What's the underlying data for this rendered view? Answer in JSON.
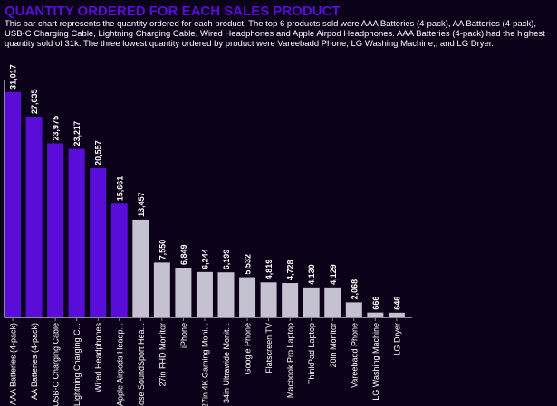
{
  "header": {
    "title": "QUANTITY ORDERED FOR EACH SALES PRODUCT",
    "description": "This bar chart represents the quantity ordered for each product. The top 6 products sold were AAA Batteries (4-pack), AA Batteries (4-pack), USB-C Charging Cable, Lightning Charging Cable, Wired Headphones and Apple Airpod Headphones. AAA Batteries (4-pack) had the highest quantity sold of 31k. The three lowest quantity ordered by product were Vareebadd Phone, LG Washing Machine,, and LG Dryer."
  },
  "colors": {
    "background": "#0b0219",
    "highlight": "#5a0cd8",
    "normal": "#c4c1d1",
    "title": "#5a0cd8"
  },
  "chart_data": {
    "type": "bar",
    "title": "QUANTITY ORDERED FOR EACH SALES PRODUCT",
    "xlabel": "",
    "ylabel": "",
    "ylim": [
      0,
      32000
    ],
    "grid": false,
    "highlight_count": 6,
    "categories": [
      "AAA Batteries (4-pack)",
      "AA Batteries (4-pack)",
      "USB-C Charging Cable",
      "Lightning Charging C...",
      "Wired Headphones",
      "Apple Airpods Headp...",
      "Bose SoundSport Hea...",
      "27in FHD Monitor",
      "iPhone",
      "27in 4K Gaming Moni...",
      "34in Ultrawide Monit...",
      "Google Phone",
      "Flatscreen TV",
      "Macbook Pro Laptop",
      "ThinkPad Laptop",
      "20in Monitor",
      "Vareebadd Phone",
      "LG Washing Machine",
      "LG Dryer"
    ],
    "values": [
      31017,
      27635,
      23975,
      23217,
      20557,
      15661,
      13457,
      7550,
      6849,
      6244,
      6199,
      5532,
      4819,
      4728,
      4130,
      4129,
      2068,
      666,
      646
    ],
    "labels": [
      "31,017",
      "27,635",
      "23,975",
      "23,217",
      "20,557",
      "15,661",
      "13,457",
      "7,550",
      "6,849",
      "6,244",
      "6,199",
      "5,532",
      "4,819",
      "4,728",
      "4,130",
      "4,129",
      "2,068",
      "666",
      "646"
    ]
  }
}
